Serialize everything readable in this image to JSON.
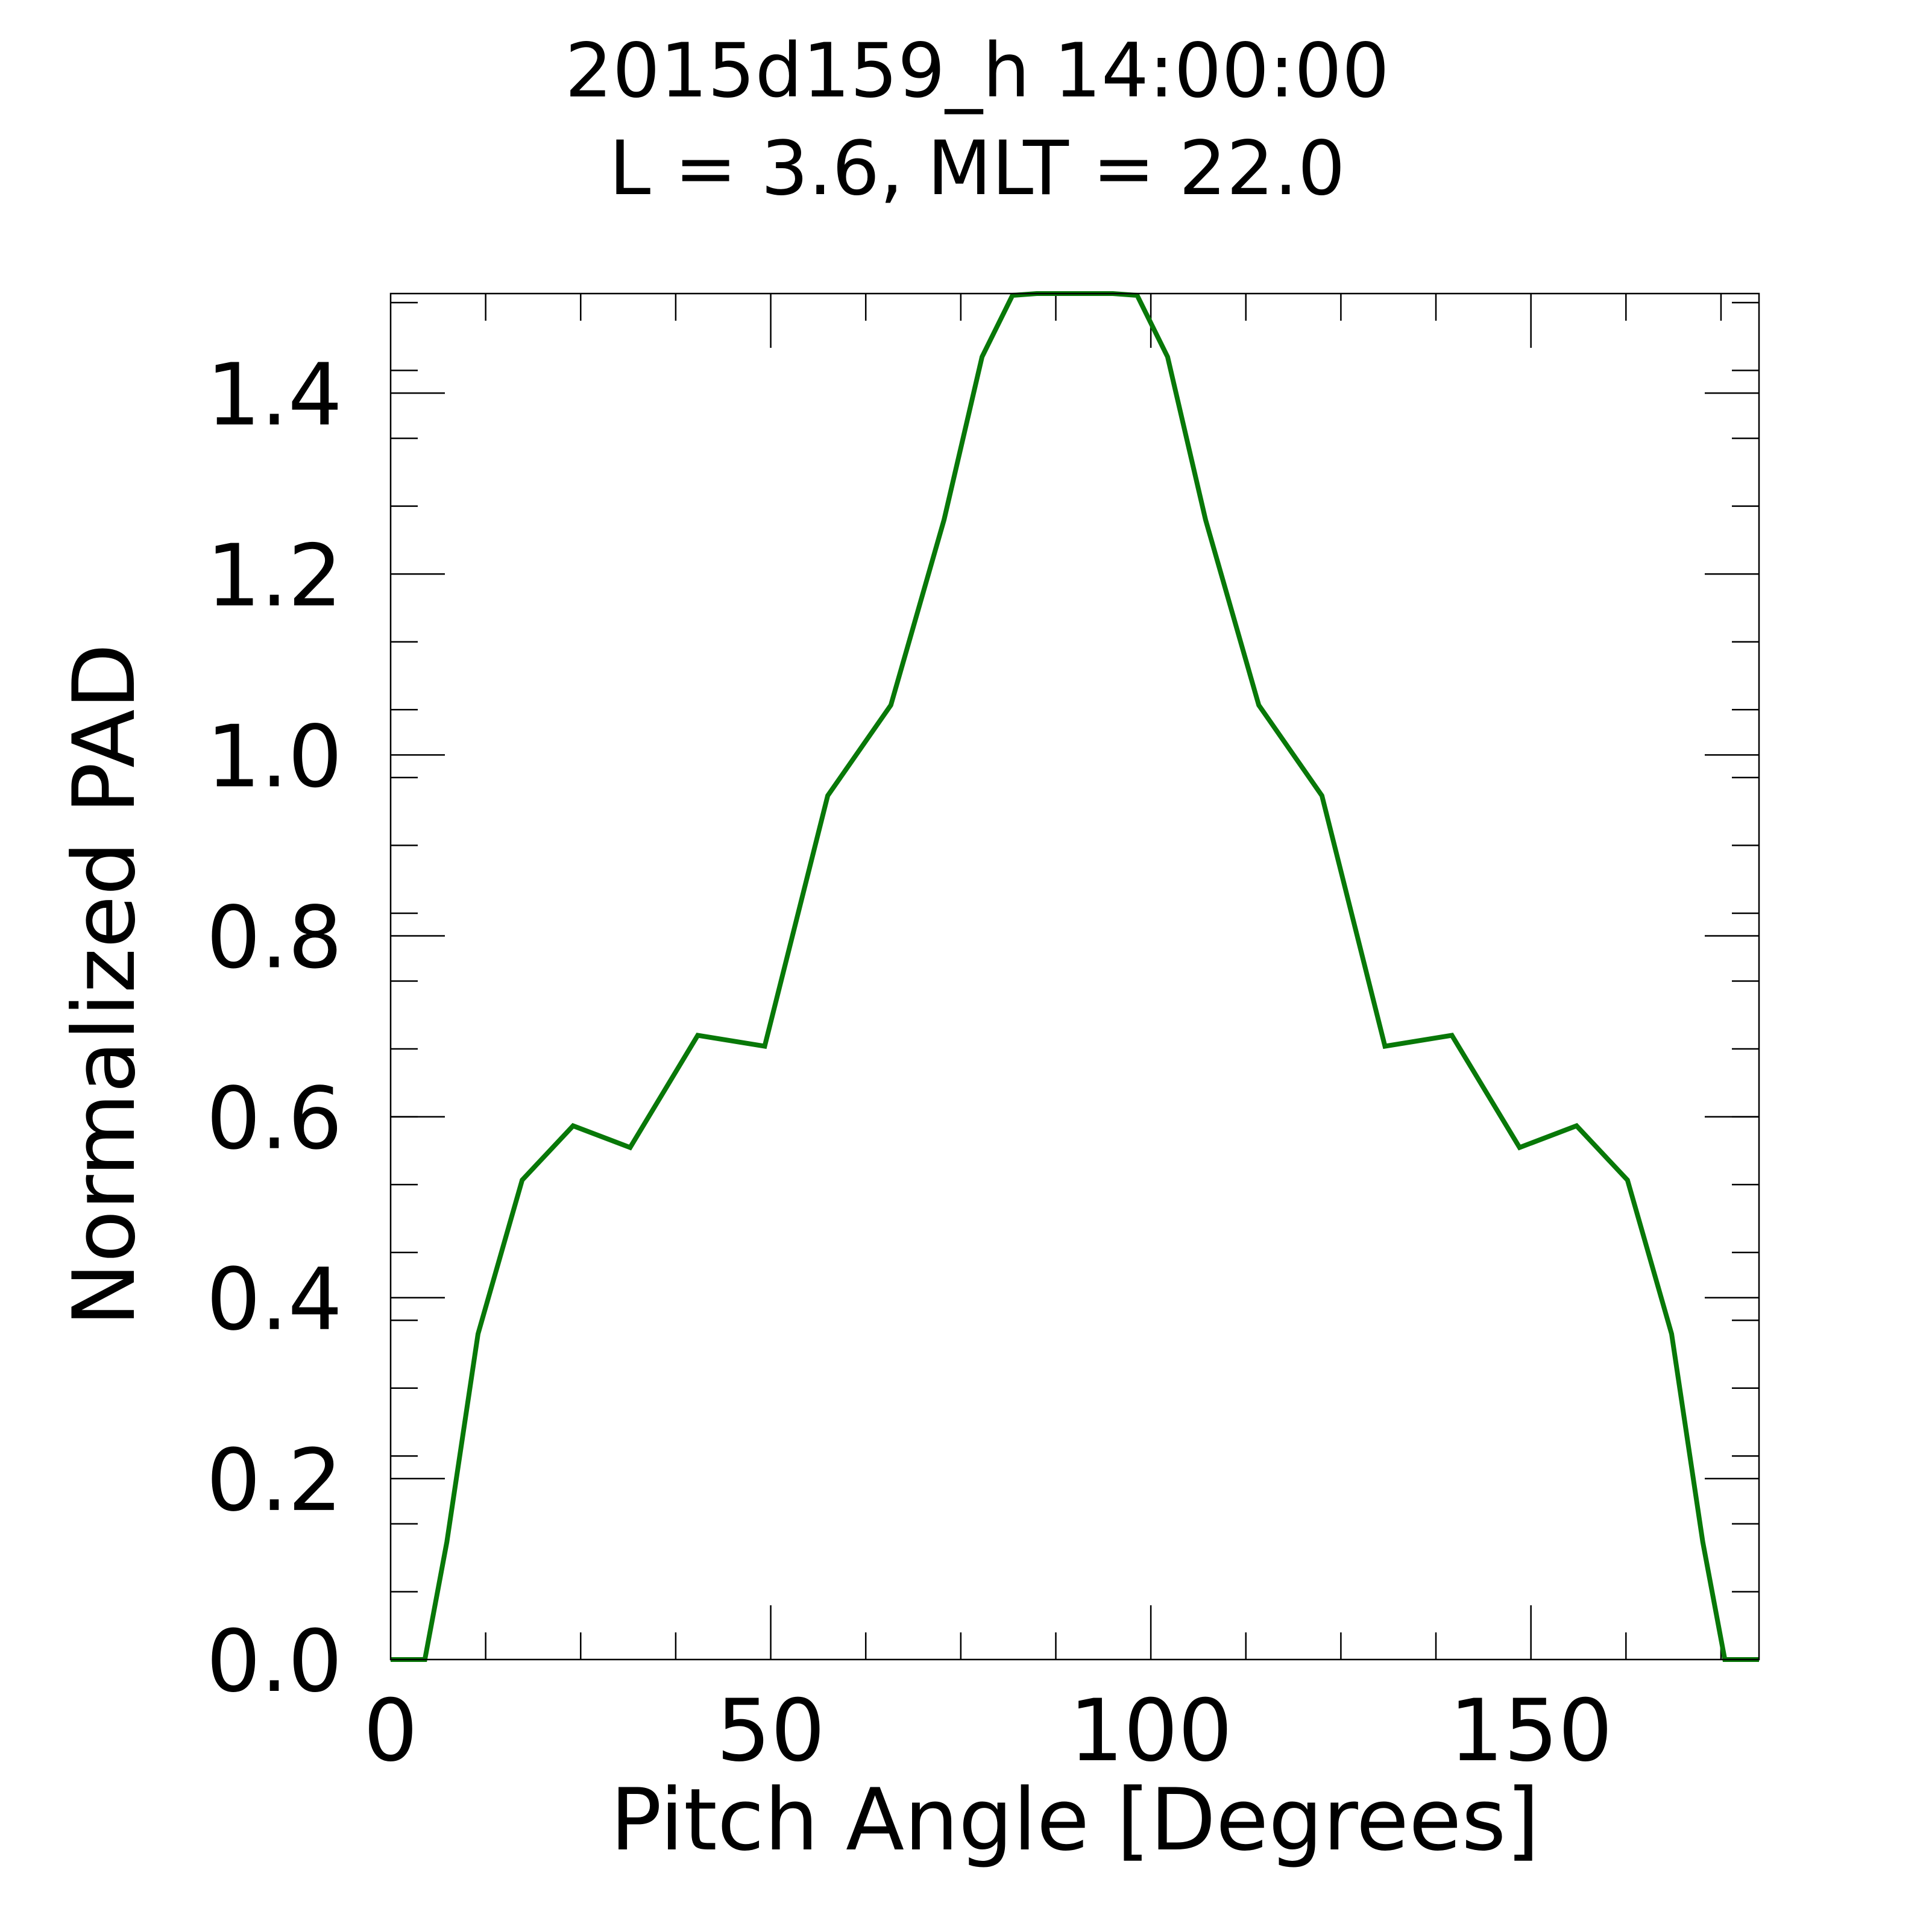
{
  "chart_data": {
    "type": "line",
    "title": "2015d159_h  14:00:00",
    "subtitle": "L = 3.6, MLT = 22.0",
    "xlabel": "Pitch Angle [Degrees]",
    "ylabel": "Normalized PAD",
    "xlim": [
      0,
      180
    ],
    "ylim": [
      0,
      1.51
    ],
    "xticks": [
      0,
      50,
      100,
      150
    ],
    "xtick_labels": [
      "0",
      "50",
      "100",
      "150"
    ],
    "yticks": [
      0.0,
      0.2,
      0.4,
      0.6,
      0.8,
      1.0,
      1.2,
      1.4
    ],
    "ytick_labels": [
      "0.0",
      "0.2",
      "0.4",
      "0.6",
      "0.8",
      "1.0",
      "1.2",
      "1.4"
    ],
    "grid": false,
    "series": [
      {
        "color": "#087808",
        "x": [
          0,
          4.5,
          7.4,
          11.5,
          17.3,
          24.0,
          31.5,
          40.4,
          49.2,
          57.5,
          65.8,
          72.8,
          77.8,
          81.8,
          85.0,
          90.0,
          95.0,
          98.2,
          102.2,
          107.2,
          114.2,
          122.5,
          130.8,
          139.6,
          148.5,
          156.0,
          162.7,
          168.5,
          172.6,
          175.5,
          180
        ],
        "y": [
          0.0,
          0.0,
          0.13,
          0.36,
          0.53,
          0.59,
          0.566,
          0.69,
          0.678,
          0.955,
          1.055,
          1.26,
          1.44,
          1.508,
          1.51,
          1.51,
          1.51,
          1.508,
          1.44,
          1.26,
          1.055,
          0.955,
          0.678,
          0.69,
          0.566,
          0.59,
          0.53,
          0.36,
          0.13,
          0.0,
          0.0
        ]
      }
    ]
  }
}
